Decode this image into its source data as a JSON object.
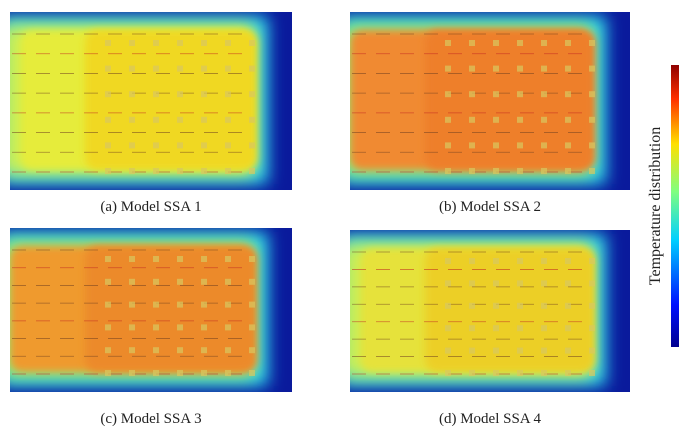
{
  "panels": [
    {
      "caption": "(a) Model SSA 1"
    },
    {
      "caption": "(b) Model SSA 2"
    },
    {
      "caption": "(c) Model SSA 3"
    },
    {
      "caption": "(d) Model SSA 4"
    }
  ],
  "colorbar": {
    "label": "Temperature distribution"
  }
}
